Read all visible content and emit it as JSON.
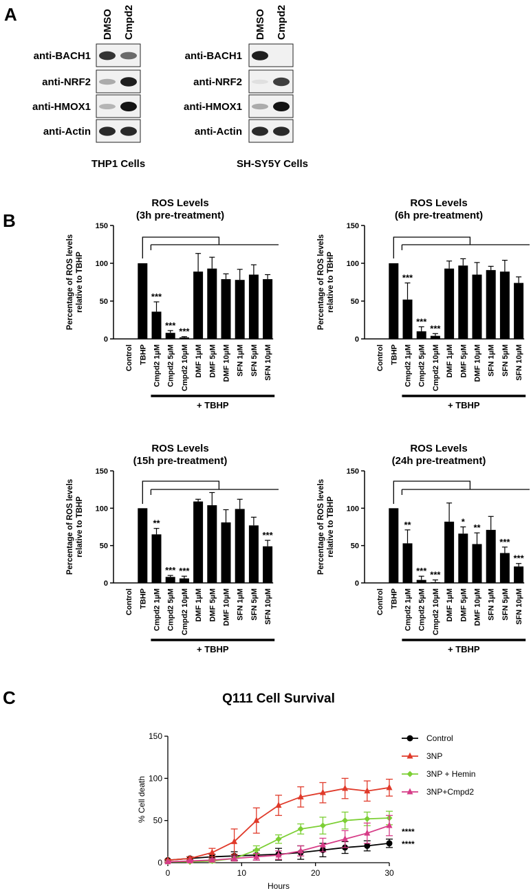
{
  "panel_labels": [
    "A",
    "B",
    "C"
  ],
  "western_blots": [
    {
      "lanes": [
        "DMSO",
        "Cmpd2"
      ],
      "rows": [
        "anti-BACH1",
        "anti-NRF2",
        "anti-HMOX1",
        "anti-Actin"
      ],
      "caption": "THP1 Cells",
      "band_intensity": [
        [
          0.85,
          0.6
        ],
        [
          0.3,
          0.95
        ],
        [
          0.25,
          1.0
        ],
        [
          0.9,
          0.9
        ]
      ]
    },
    {
      "lanes": [
        "DMSO",
        "Cmpd2"
      ],
      "rows": [
        "anti-BACH1",
        "anti-NRF2",
        "anti-HMOX1",
        "anti-Actin"
      ],
      "caption": "SH-SY5Y Cells",
      "band_intensity": [
        [
          0.95,
          0.0
        ],
        [
          0.05,
          0.8
        ],
        [
          0.3,
          1.0
        ],
        [
          0.9,
          0.9
        ]
      ]
    }
  ],
  "chart_data": [
    {
      "type": "bar",
      "title": "ROS Levels",
      "subtitle": "(3h pre-treatment)",
      "ylabel": "Percentage of ROS levels relative to TBHP",
      "ylim": [
        0,
        150
      ],
      "yticks": [
        "0",
        "50",
        "100",
        "150"
      ],
      "categories": [
        "Control",
        "TBHP",
        "Cmpd2 1µM",
        "Cmpd2 5µM",
        "Cmpd2 10µM",
        "DMF 1µM",
        "DMF 5µM",
        "DMF 10µM",
        "SFN 1µM",
        "SFN 5µM",
        "SFN 10µM"
      ],
      "values": [
        0,
        100,
        36,
        8,
        2,
        89,
        93,
        79,
        78,
        85,
        79
      ],
      "errors": [
        0,
        0,
        13,
        3,
        1,
        24,
        15,
        7,
        14,
        13,
        6
      ],
      "significance": [
        "",
        "",
        "***",
        "***",
        "***",
        "",
        "",
        "",
        "",
        "",
        ""
      ],
      "group_label": "+ TBHP"
    },
    {
      "type": "bar",
      "title": "ROS Levels",
      "subtitle": "(6h pre-treatment)",
      "ylabel": "Percentage of ROS levels relative to TBHP",
      "ylim": [
        0,
        150
      ],
      "yticks": [
        "0",
        "50",
        "100",
        "150"
      ],
      "categories": [
        "Control",
        "TBHP",
        "Cmpd2 1µM",
        "Cmpd2 5µM",
        "Cmpd2 10µM",
        "DMF 1µM",
        "DMF 5µM",
        "DMF 10µM",
        "SFN 1µM",
        "SFN 5µM",
        "SFN 10µM"
      ],
      "values": [
        0,
        100,
        52,
        10,
        4,
        93,
        97,
        85,
        91,
        89,
        74
      ],
      "errors": [
        0,
        0,
        22,
        6,
        3,
        10,
        9,
        16,
        5,
        15,
        8
      ],
      "significance": [
        "",
        "",
        "***",
        "***",
        "***",
        "",
        "",
        "",
        "",
        "",
        ""
      ],
      "group_label": "+ TBHP"
    },
    {
      "type": "bar",
      "title": "ROS Levels",
      "subtitle": "(15h pre-treatment)",
      "ylabel": "Percentage of ROS levels relative to TBHP",
      "ylim": [
        0,
        150
      ],
      "yticks": [
        "0",
        "50",
        "100",
        "150"
      ],
      "categories": [
        "Control",
        "TBHP",
        "Cmpd2 1µM",
        "Cmpd2 5µM",
        "Cmpd2 10µM",
        "DMF 1µM",
        "DMF 5µM",
        "DMF 10µM",
        "SFN 1µM",
        "SFN 5µM",
        "SFN 10µM"
      ],
      "values": [
        0,
        100,
        65,
        8,
        6,
        109,
        104,
        81,
        99,
        77,
        49
      ],
      "errors": [
        0,
        0,
        8,
        2,
        3,
        3,
        17,
        17,
        13,
        11,
        8
      ],
      "significance": [
        "",
        "",
        "**",
        "***",
        "***",
        "",
        "",
        "",
        "",
        "",
        "***"
      ],
      "group_label": "+ TBHP"
    },
    {
      "type": "bar",
      "title": "ROS Levels",
      "subtitle": "(24h pre-treatment)",
      "ylabel": "Percentage of ROS levels relative to TBHP",
      "ylim": [
        0,
        150
      ],
      "yticks": [
        "0",
        "50",
        "100",
        "150"
      ],
      "categories": [
        "Control",
        "TBHP",
        "Cmpd2 1µM",
        "Cmpd2 5µM",
        "Cmpd2 10µM",
        "DMF 1µM",
        "DMF 5µM",
        "DMF 10µM",
        "SFN 1µM",
        "SFN 5µM",
        "SFN 10µM"
      ],
      "values": [
        0,
        100,
        53,
        4,
        1,
        82,
        66,
        52,
        71,
        40,
        22
      ],
      "errors": [
        0,
        0,
        18,
        5,
        3,
        25,
        9,
        15,
        18,
        8,
        4
      ],
      "significance": [
        "",
        "",
        "**",
        "***",
        "***",
        "",
        "*",
        "**",
        "",
        "***",
        "***"
      ],
      "group_label": "+ TBHP"
    },
    {
      "type": "line",
      "title": "Q111 Cell Survival",
      "xlabel": "Hours",
      "ylabel": "% Cell death",
      "xlim": [
        0,
        30
      ],
      "ylim": [
        0,
        150
      ],
      "xticks": [
        "0",
        "10",
        "20",
        "30"
      ],
      "yticks": [
        "0",
        "50",
        "100",
        "150"
      ],
      "x": [
        0,
        3,
        6,
        9,
        12,
        15,
        18,
        21,
        24,
        27,
        30
      ],
      "series": [
        {
          "name": "Control",
          "color": "#000000",
          "marker": "circle",
          "values": [
            3,
            5,
            7,
            8,
            9,
            10,
            12,
            15,
            18,
            20,
            23
          ],
          "errors": [
            1,
            2,
            3,
            5,
            6,
            7,
            8,
            8,
            7,
            6,
            5
          ]
        },
        {
          "name": "3NP",
          "color": "#e03a2a",
          "marker": "triangle",
          "values": [
            3,
            5,
            12,
            25,
            50,
            68,
            78,
            83,
            88,
            85,
            89
          ],
          "errors": [
            1,
            2,
            5,
            15,
            15,
            12,
            12,
            12,
            12,
            12,
            10
          ]
        },
        {
          "name": "3NP + Hemin",
          "color": "#7ccf34",
          "marker": "diamond",
          "values": [
            1,
            1,
            2,
            5,
            15,
            28,
            40,
            44,
            50,
            52,
            53
          ],
          "errors": [
            1,
            1,
            2,
            3,
            5,
            5,
            6,
            10,
            10,
            8,
            8
          ]
        },
        {
          "name": "3NP+Cmpd2",
          "color": "#d63c87",
          "marker": "triangle",
          "values": [
            1,
            2,
            3,
            5,
            7,
            9,
            14,
            21,
            28,
            35,
            44
          ],
          "errors": [
            1,
            1,
            2,
            3,
            4,
            5,
            6,
            8,
            10,
            12,
            12
          ]
        }
      ],
      "annotations": [
        "****",
        "****"
      ],
      "legend_position": "right"
    }
  ]
}
